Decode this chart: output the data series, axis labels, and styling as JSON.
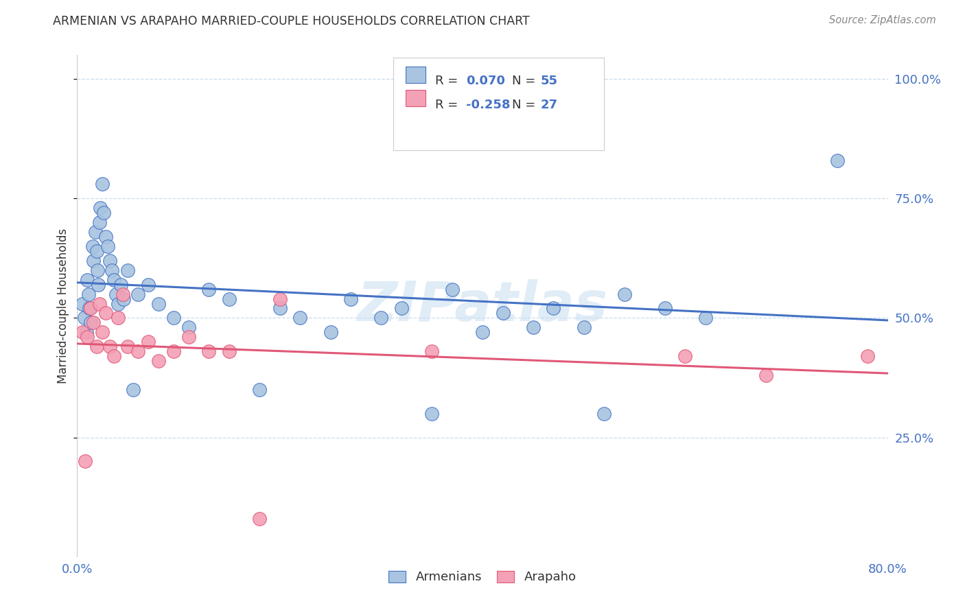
{
  "title": "ARMENIAN VS ARAPAHO MARRIED-COUPLE HOUSEHOLDS CORRELATION CHART",
  "source": "Source: ZipAtlas.com",
  "ylabel": "Married-couple Households",
  "ytick_vals": [
    0.25,
    0.5,
    0.75,
    1.0
  ],
  "ytick_labels": [
    "25.0%",
    "50.0%",
    "75.0%",
    "100.0%"
  ],
  "xtick_vals": [
    0.0,
    0.8
  ],
  "xtick_labels": [
    "0.0%",
    "80.0%"
  ],
  "armenian_color": "#a8c4e0",
  "arapaho_color": "#f4a0b5",
  "armenian_line_color": "#4472c4",
  "arapaho_line_color": "#e05878",
  "title_color": "#333333",
  "source_color": "#888888",
  "axis_color": "#4472c4",
  "watermark_color": "#c8ddf0",
  "watermark": "ZIPatlas",
  "background_color": "#ffffff",
  "grid_color": "#c8ddf0",
  "xmin": 0.0,
  "xmax": 0.8,
  "ymin": 0.0,
  "ymax": 1.05,
  "armenian_x": [
    0.005,
    0.007,
    0.009,
    0.01,
    0.011,
    0.012,
    0.013,
    0.015,
    0.016,
    0.018,
    0.019,
    0.02,
    0.021,
    0.022,
    0.023,
    0.025,
    0.026,
    0.028,
    0.03,
    0.032,
    0.034,
    0.036,
    0.038,
    0.04,
    0.043,
    0.046,
    0.05,
    0.055,
    0.06,
    0.07,
    0.08,
    0.095,
    0.11,
    0.13,
    0.15,
    0.18,
    0.2,
    0.22,
    0.25,
    0.27,
    0.3,
    0.32,
    0.35,
    0.37,
    0.4,
    0.42,
    0.45,
    0.47,
    0.5,
    0.52,
    0.54,
    0.58,
    0.35,
    0.62,
    0.75
  ],
  "armenian_y": [
    0.53,
    0.5,
    0.47,
    0.58,
    0.55,
    0.52,
    0.49,
    0.65,
    0.62,
    0.68,
    0.64,
    0.6,
    0.57,
    0.7,
    0.73,
    0.78,
    0.72,
    0.67,
    0.65,
    0.62,
    0.6,
    0.58,
    0.55,
    0.53,
    0.57,
    0.54,
    0.6,
    0.35,
    0.55,
    0.57,
    0.53,
    0.5,
    0.48,
    0.56,
    0.54,
    0.35,
    0.52,
    0.5,
    0.47,
    0.54,
    0.5,
    0.52,
    0.3,
    0.56,
    0.47,
    0.51,
    0.48,
    0.52,
    0.48,
    0.3,
    0.55,
    0.52,
    0.9,
    0.5,
    0.83
  ],
  "arapaho_x": [
    0.005,
    0.008,
    0.01,
    0.013,
    0.016,
    0.019,
    0.022,
    0.025,
    0.028,
    0.032,
    0.036,
    0.04,
    0.045,
    0.05,
    0.06,
    0.07,
    0.08,
    0.095,
    0.11,
    0.13,
    0.15,
    0.18,
    0.2,
    0.35,
    0.6,
    0.68,
    0.78
  ],
  "arapaho_y": [
    0.47,
    0.2,
    0.46,
    0.52,
    0.49,
    0.44,
    0.53,
    0.47,
    0.51,
    0.44,
    0.42,
    0.5,
    0.55,
    0.44,
    0.43,
    0.45,
    0.41,
    0.43,
    0.46,
    0.43,
    0.43,
    0.08,
    0.54,
    0.43,
    0.42,
    0.38,
    0.42
  ],
  "fig_width": 14.06,
  "fig_height": 8.92
}
